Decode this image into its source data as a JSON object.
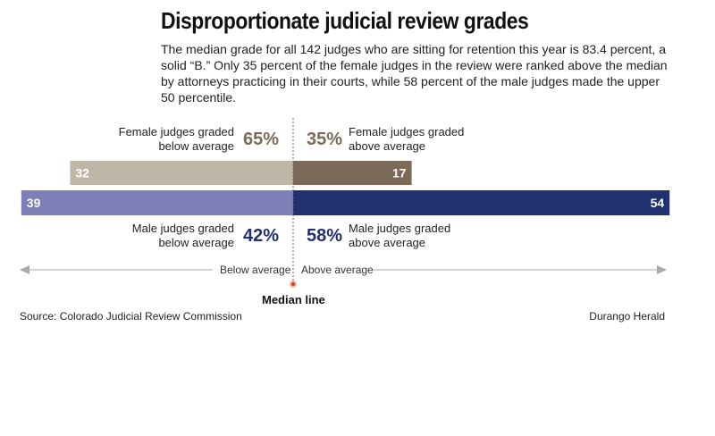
{
  "title": "Disproportionate judicial review grades",
  "subtitle": "The median grade for all 142 judges who are sitting for retention this year is 83.4 percent, a solid “B.” Only 35 percent of the female judges in the review were ranked above the median by attorneys practicing in their courts, while 58 percent of the male judges made the upper 50 percentile.",
  "source": "Source: Colorado Judicial Review Commission",
  "credit": "Durango Herald",
  "axis": {
    "below_label": "Below average",
    "above_label": "Above average",
    "median_label": "Median line"
  },
  "colors": {
    "female_below": "#c0b6a7",
    "female_above": "#7b6a58",
    "male_below": "#7e7fb6",
    "male_above": "#21306f",
    "female_pct": "#7b6a58",
    "male_pct": "#21306f"
  },
  "chart_data": {
    "type": "bar",
    "orientation": "diverging-horizontal",
    "series": [
      {
        "name": "Female judges",
        "below": {
          "value": 32,
          "pct": "65%",
          "label": "Female judges graded below average"
        },
        "above": {
          "value": 17,
          "pct": "35%",
          "label": "Female judges graded above average"
        }
      },
      {
        "name": "Male judges",
        "below": {
          "value": 39,
          "pct": "42%",
          "label": "Male judges graded below average"
        },
        "above": {
          "value": 54,
          "pct": "58%",
          "label": "Male judges graded above average"
        }
      }
    ]
  }
}
